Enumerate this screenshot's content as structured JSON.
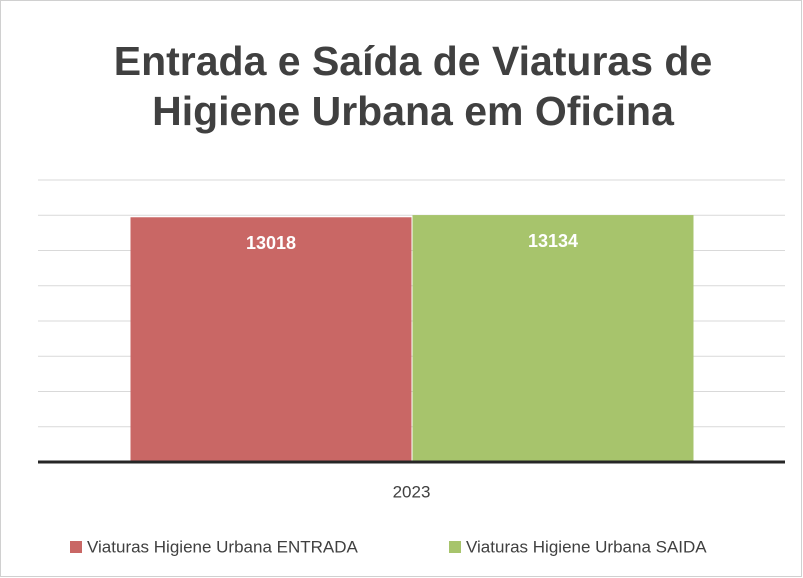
{
  "chart_data": {
    "type": "bar",
    "title": "Entrada e Saída de Viaturas de Higiene Urbana em Oficina",
    "categories": [
      "2023"
    ],
    "series": [
      {
        "name": "Viaturas Higiene Urbana ENTRADA",
        "color": "#c96765",
        "values": [
          13018
        ]
      },
      {
        "name": "Viaturas Higiene Urbana SAIDA",
        "color": "#a7c46c",
        "values": [
          13134
        ]
      }
    ],
    "ylim": [
      0,
      15000
    ],
    "yticks": [
      0,
      1875,
      3750,
      5625,
      7500,
      9375,
      11250,
      13125,
      15000
    ],
    "grid": true,
    "legend": "bottom"
  }
}
